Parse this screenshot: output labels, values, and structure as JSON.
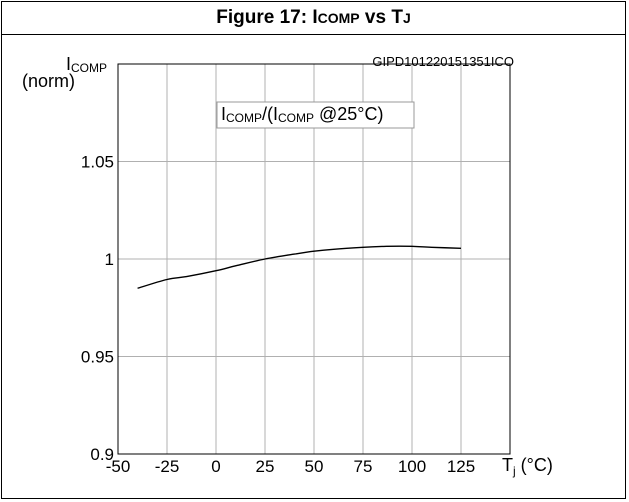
{
  "title": {
    "prefix": "Figure 17: I",
    "sub": "COMP",
    "mid": " vs T",
    "sub2": "J"
  },
  "chart_data": {
    "type": "line",
    "code": "GIPD101220151351ICO",
    "ylabel_main": "I",
    "ylabel_sub": "COMP",
    "ylabel_unit": "(norm)",
    "xlabel_main": "T",
    "xlabel_sub": "j",
    "xlabel_unit": " (°C)",
    "legend": {
      "p1": "I",
      "s1": "COMP",
      "p2": "/(I",
      "s2": "COMP",
      "p3": " @25°C)"
    },
    "xlim": [
      -50,
      150
    ],
    "ylim": [
      0.9,
      1.1
    ],
    "x_ticks": [
      "-50",
      "-25",
      "0",
      "25",
      "50",
      "75",
      "100",
      "125"
    ],
    "y_ticks": [
      "0.9",
      "0.95",
      "1",
      "1.05"
    ],
    "grid": true,
    "series": [
      {
        "x": [
          -40,
          -25,
          -15,
          0,
          10,
          25,
          40,
          50,
          60,
          75,
          87,
          100,
          110,
          125
        ],
        "y": [
          0.985,
          0.9895,
          0.991,
          0.994,
          0.9965,
          1.0,
          1.0025,
          1.004,
          1.005,
          1.006,
          1.0065,
          1.0065,
          1.006,
          1.0055
        ]
      }
    ]
  }
}
